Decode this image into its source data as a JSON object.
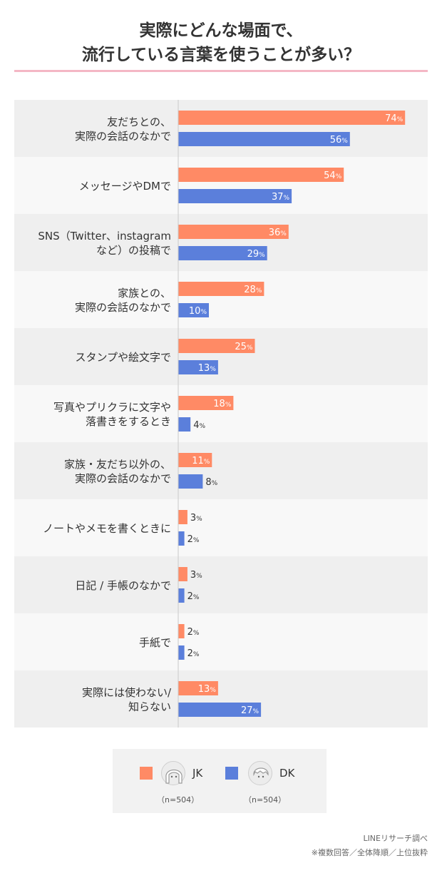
{
  "title": [
    "実際にどんな場面で、",
    "流行している言葉を使うことが多い？"
  ],
  "chart_data": {
    "type": "bar",
    "orientation": "horizontal",
    "unit": "%",
    "categories": [
      [
        "友だちとの、",
        "実際の会話のなかで"
      ],
      [
        "メッセージやDMで"
      ],
      [
        "SNS（Twitter、instagram",
        "など）の投稿で"
      ],
      [
        "家族との、",
        "実際の会話のなかで"
      ],
      [
        "スタンプや絵文字で"
      ],
      [
        "写真やプリクラに文字や",
        "落書きをするとき"
      ],
      [
        "家族・友だち以外の、",
        "実際の会話のなかで"
      ],
      [
        "ノートやメモを書くときに"
      ],
      [
        "日記 / 手帳のなかで"
      ],
      [
        "手紙で"
      ],
      [
        "実際には使わない/",
        "知らない"
      ]
    ],
    "series": [
      {
        "name": "JK",
        "color": "#ff8a65",
        "values": [
          74,
          54,
          36,
          28,
          25,
          18,
          11,
          3,
          3,
          2,
          13
        ]
      },
      {
        "name": "DK",
        "color": "#5b7fdb",
        "values": [
          56,
          37,
          29,
          10,
          13,
          4,
          8,
          2,
          2,
          2,
          27
        ]
      }
    ],
    "xlim": [
      0,
      100
    ],
    "legend_position": "bottom"
  },
  "legend": {
    "items": [
      {
        "label": "JK",
        "note": "（n=504）"
      },
      {
        "label": "DK",
        "note": "（n=504）"
      }
    ]
  },
  "source": [
    "LINEリサーチ調べ",
    "※複数回答／全体降順／上位抜粋"
  ]
}
